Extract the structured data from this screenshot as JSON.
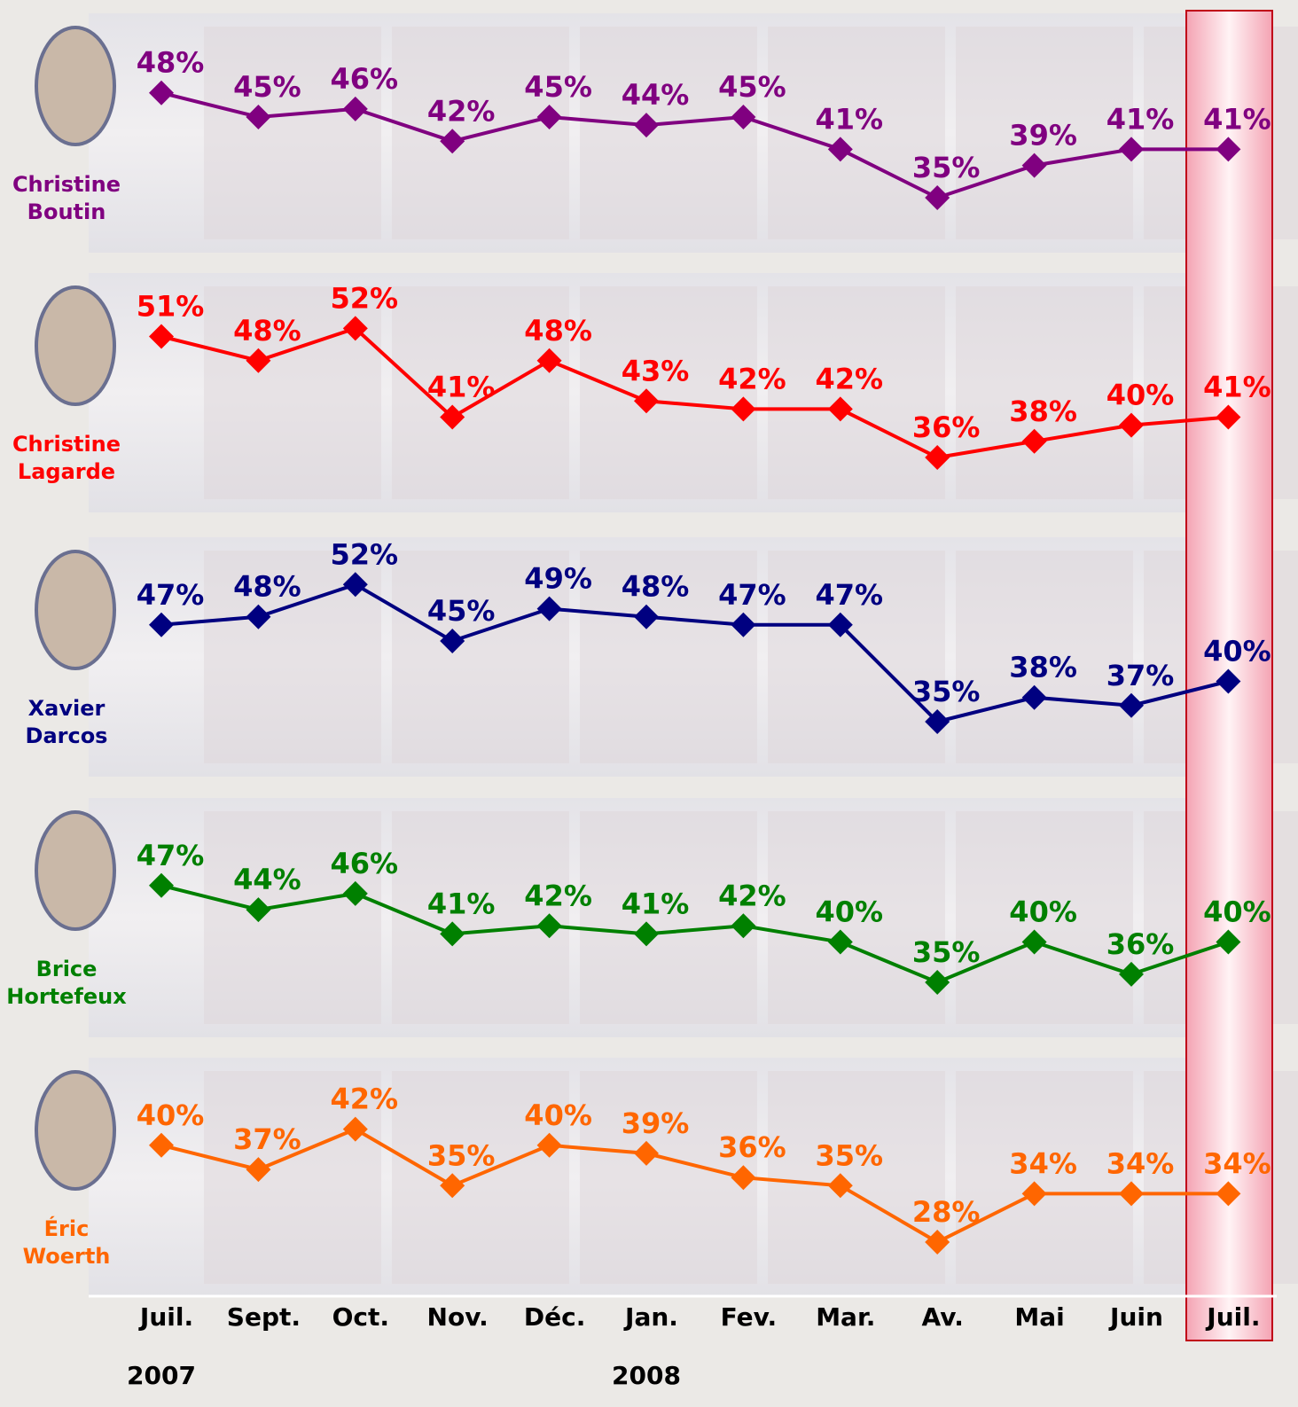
{
  "chart_data": [
    {
      "type": "line",
      "series": [
        {
          "name": "Christine Boutin",
          "color": "#800080",
          "values": [
            48,
            45,
            46,
            42,
            45,
            44,
            45,
            41,
            35,
            39,
            41,
            41
          ],
          "value_labels": [
            "48%",
            "45%",
            "46%",
            "42%",
            "45%",
            "44%",
            "45%",
            "41%",
            "35%",
            "39%",
            "41%",
            "41%"
          ]
        }
      ]
    },
    {
      "type": "line",
      "series": [
        {
          "name": "Christine Lagarde",
          "color": "#ff0000",
          "values": [
            51,
            48,
            52,
            41,
            48,
            43,
            42,
            42,
            36,
            38,
            40,
            41
          ],
          "value_labels": [
            "51%",
            "48%",
            "52%",
            "41%",
            "48%",
            "43%",
            "42%",
            "42%",
            "36%",
            "38%",
            "40%",
            "41%"
          ]
        }
      ]
    },
    {
      "type": "line",
      "series": [
        {
          "name": "Xavier Darcos",
          "color": "#000080",
          "values": [
            47,
            48,
            52,
            45,
            49,
            48,
            47,
            47,
            35,
            38,
            37,
            40
          ],
          "value_labels": [
            "47%",
            "48%",
            "52%",
            "45%",
            "49%",
            "48%",
            "47%",
            "47%",
            "35%",
            "38%",
            "37%",
            "40%"
          ]
        }
      ]
    },
    {
      "type": "line",
      "series": [
        {
          "name": "Brice Hortefeux",
          "color": "#008000",
          "values": [
            47,
            44,
            46,
            41,
            42,
            41,
            42,
            40,
            35,
            40,
            36,
            40
          ],
          "value_labels": [
            "47%",
            "44%",
            "46%",
            "41%",
            "42%",
            "41%",
            "42%",
            "40%",
            "35%",
            "40%",
            "36%",
            "40%"
          ]
        }
      ]
    },
    {
      "type": "line",
      "categories": [
        "Juil.",
        "Sept.",
        "Oct.",
        "Nov.",
        "Déc.",
        "Jan.",
        "Fev.",
        "Mar.",
        "Av.",
        "Mai",
        "Juin",
        "Juil."
      ],
      "years": [
        "2007",
        null,
        null,
        null,
        null,
        "2008",
        null,
        null,
        null,
        null,
        null,
        null
      ],
      "series": [
        {
          "name": "Éric Woerth",
          "color": "#ff6600",
          "values": [
            40,
            37,
            42,
            35,
            40,
            39,
            36,
            35,
            28,
            34,
            34,
            34
          ],
          "value_labels": [
            "40%",
            "37%",
            "42%",
            "35%",
            "40%",
            "39%",
            "36%",
            "35%",
            "28%",
            "34%",
            "34%",
            "34%"
          ]
        }
      ]
    }
  ]
}
